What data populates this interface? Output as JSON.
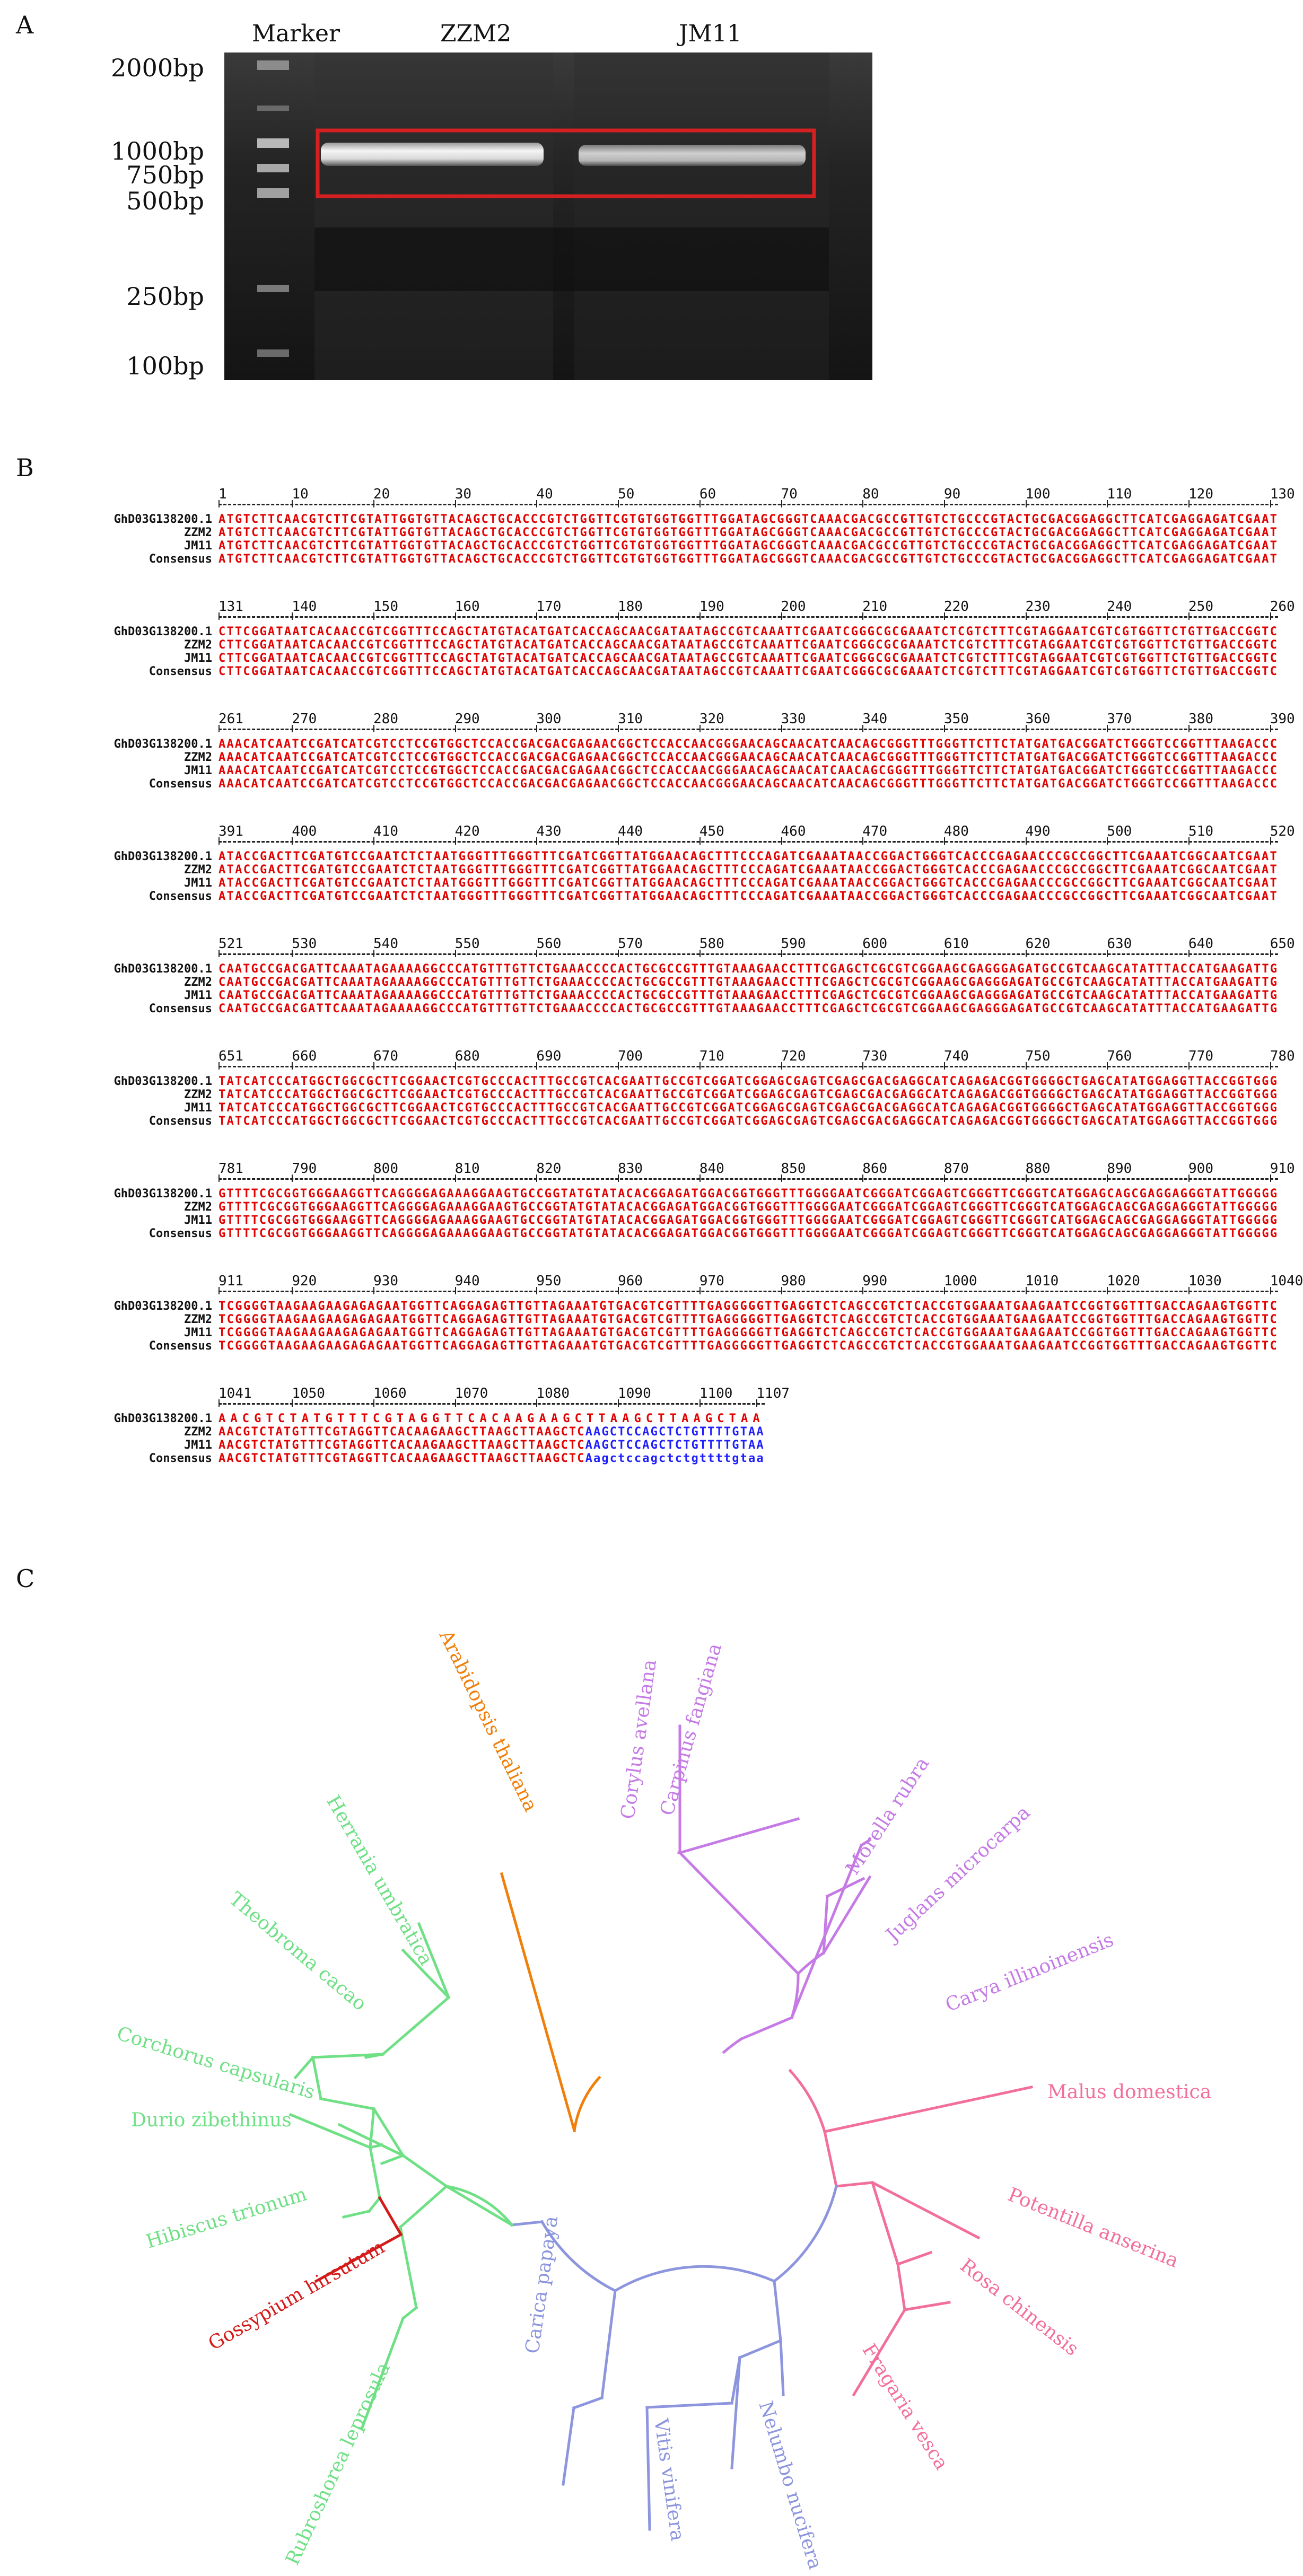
{
  "panels": {
    "a": "A",
    "b": "B",
    "c": "C"
  },
  "gel": {
    "lane_labels": [
      "Marker",
      "ZZM2",
      "JM11"
    ],
    "marker_sizes": [
      "2000bp",
      "1000bp",
      "750bp",
      "500bp",
      "250bp",
      "100bp"
    ],
    "highlight_color": "#d42020"
  },
  "alignment": {
    "names": [
      "GhD03G138200.1",
      "ZZM2",
      "JM11",
      "Consensus"
    ],
    "blocks": [
      {
        "nums": [
          "1",
          "10",
          "20",
          "30",
          "40",
          "50",
          "60",
          "70",
          "80",
          "90",
          "100",
          "110",
          "120",
          "130"
        ],
        "seqs": [
          "ATGTCTTCAACGTCTTCGTATTGGTGTTACAGCTGCACCCGTCTGGTTCGTGTGGTGGTTTGGATAGCGGGTCAAACGACGCCGTTGTCTGCCCGTACTGCGACGGAGGCTTCATCGAGGAGATCGAAT",
          "ATGTCTTCAACGTCTTCGTATTGGTGTTACAGCTGCACCCGTCTGGTTCGTGTGGTGGTTTGGATAGCGGGTCAAACGACGCCGTTGTCTGCCCGTACTGCGACGGAGGCTTCATCGAGGAGATCGAAT",
          "ATGTCTTCAACGTCTTCGTATTGGTGTTACAGCTGCACCCGTCTGGTTCGTGTGGTGGTTTGGATAGCGGGTCAAACGACGCCGTTGTCTGCCCGTACTGCGACGGAGGCTTCATCGAGGAGATCGAAT",
          "ATGTCTTCAACGTCTTCGTATTGGTGTTACAGCTGCACCCGTCTGGTTCGTGTGGTGGTTTGGATAGCGGGTCAAACGACGCCGTTGTCTGCCCGTACTGCGACGGAGGCTTCATCGAGGAGATCGAAT"
        ]
      },
      {
        "nums": [
          "131",
          "140",
          "150",
          "160",
          "170",
          "180",
          "190",
          "200",
          "210",
          "220",
          "230",
          "240",
          "250",
          "260"
        ],
        "seqs": [
          "CTTCGGATAATCACAACCGTCGGTTTCCAGCTATGTACATGATCACCAGCAACGATAATAGCCGTCAAATTCGAATCGGGCGCGAAATCTCGTCTTTCGTAGGAATCGTCGTGGTTCTGTTGACCGGTC",
          "CTTCGGATAATCACAACCGTCGGTTTCCAGCTATGTACATGATCACCAGCAACGATAATAGCCGTCAAATTCGAATCGGGCGCGAAATCTCGTCTTTCGTAGGAATCGTCGTGGTTCTGTTGACCGGTC",
          "CTTCGGATAATCACAACCGTCGGTTTCCAGCTATGTACATGATCACCAGCAACGATAATAGCCGTCAAATTCGAATCGGGCGCGAAATCTCGTCTTTCGTAGGAATCGTCGTGGTTCTGTTGACCGGTC",
          "CTTCGGATAATCACAACCGTCGGTTTCCAGCTATGTACATGATCACCAGCAACGATAATAGCCGTCAAATTCGAATCGGGCGCGAAATCTCGTCTTTCGTAGGAATCGTCGTGGTTCTGTTGACCGGTC"
        ]
      },
      {
        "nums": [
          "261",
          "270",
          "280",
          "290",
          "300",
          "310",
          "320",
          "330",
          "340",
          "350",
          "360",
          "370",
          "380",
          "390"
        ],
        "seqs": [
          "AAACATCAATCCGATCATCGTCCTCCGTGGCTCCACCGACGACGAGAACGGCTCCACCAACGGGAACAGCAACATCAACAGCGGGTTTGGGTTCTTCTATGATGACGGATCTGGGTCCGGTTTAAGACCC",
          "AAACATCAATCCGATCATCGTCCTCCGTGGCTCCACCGACGACGAGAACGGCTCCACCAACGGGAACAGCAACATCAACAGCGGGTTTGGGTTCTTCTATGATGACGGATCTGGGTCCGGTTTAAGACCC",
          "AAACATCAATCCGATCATCGTCCTCCGTGGCTCCACCGACGACGAGAACGGCTCCACCAACGGGAACAGCAACATCAACAGCGGGTTTGGGTTCTTCTATGATGACGGATCTGGGTCCGGTTTAAGACCC",
          "AAACATCAATCCGATCATCGTCCTCCGTGGCTCCACCGACGACGAGAACGGCTCCACCAACGGGAACAGCAACATCAACAGCGGGTTTGGGTTCTTCTATGATGACGGATCTGGGTCCGGTTTAAGACCC"
        ]
      },
      {
        "nums": [
          "391",
          "400",
          "410",
          "420",
          "430",
          "440",
          "450",
          "460",
          "470",
          "480",
          "490",
          "500",
          "510",
          "520"
        ],
        "seqs": [
          "ATACCGACTTCGATGTCCGAATCTCTAATGGGTTTGGGTTTCGATCGGTTATGGAACAGCTTTCCCAGATCGAAATAACCGGACTGGGTCACCCGAGAACCCGCCGGCTTCGAAATCGGCAATCGAAT",
          "ATACCGACTTCGATGTCCGAATCTCTAATGGGTTTGGGTTTCGATCGGTTATGGAACAGCTTTCCCAGATCGAAATAACCGGACTGGGTCACCCGAGAACCCGCCGGCTTCGAAATCGGCAATCGAAT",
          "ATACCGACTTCGATGTCCGAATCTCTAATGGGTTTGGGTTTCGATCGGTTATGGAACAGCTTTCCCAGATCGAAATAACCGGACTGGGTCACCCGAGAACCCGCCGGCTTCGAAATCGGCAATCGAAT",
          "ATACCGACTTCGATGTCCGAATCTCTAATGGGTTTGGGTTTCGATCGGTTATGGAACAGCTTTCCCAGATCGAAATAACCGGACTGGGTCACCCGAGAACCCGCCGGCTTCGAAATCGGCAATCGAAT"
        ]
      },
      {
        "nums": [
          "521",
          "530",
          "540",
          "550",
          "560",
          "570",
          "580",
          "590",
          "600",
          "610",
          "620",
          "630",
          "640",
          "650"
        ],
        "seqs": [
          "CAATGCCGACGATTCAAATAGAAAAGGCCCATGTTTGTTCTGAAACCCCACTGCGCCGTTTGTAAAGAACCTTTCGAGCTCGCGTCGGAAGCGAGGGAGATGCCGTCAAGCATATTTACCATGAAGATTG",
          "CAATGCCGACGATTCAAATAGAAAAGGCCCATGTTTGTTCTGAAACCCCACTGCGCCGTTTGTAAAGAACCTTTCGAGCTCGCGTCGGAAGCGAGGGAGATGCCGTCAAGCATATTTACCATGAAGATTG",
          "CAATGCCGACGATTCAAATAGAAAAGGCCCATGTTTGTTCTGAAACCCCACTGCGCCGTTTGTAAAGAACCTTTCGAGCTCGCGTCGGAAGCGAGGGAGATGCCGTCAAGCATATTTACCATGAAGATTG",
          "CAATGCCGACGATTCAAATAGAAAAGGCCCATGTTTGTTCTGAAACCCCACTGCGCCGTTTGTAAAGAACCTTTCGAGCTCGCGTCGGAAGCGAGGGAGATGCCGTCAAGCATATTTACCATGAAGATTG"
        ]
      },
      {
        "nums": [
          "651",
          "660",
          "670",
          "680",
          "690",
          "700",
          "710",
          "720",
          "730",
          "740",
          "750",
          "760",
          "770",
          "780"
        ],
        "seqs": [
          "TATCATCCCATGGCTGGCGCTTCGGAACTCGTGCCCACTTTGCCGTCACGAATTGCCGTCGGATCGGAGCGAGTCGAGCGACGAGGCATCAGAGACGGTGGGGCTGAGCATATGGAGGTTACCGGTGGG",
          "TATCATCCCATGGCTGGCGCTTCGGAACTCGTGCCCACTTTGCCGTCACGAATTGCCGTCGGATCGGAGCGAGTCGAGCGACGAGGCATCAGAGACGGTGGGGCTGAGCATATGGAGGTTACCGGTGGG",
          "TATCATCCCATGGCTGGCGCTTCGGAACTCGTGCCCACTTTGCCGTCACGAATTGCCGTCGGATCGGAGCGAGTCGAGCGACGAGGCATCAGAGACGGTGGGGCTGAGCATATGGAGGTTACCGGTGGG",
          "TATCATCCCATGGCTGGCGCTTCGGAACTCGTGCCCACTTTGCCGTCACGAATTGCCGTCGGATCGGAGCGAGTCGAGCGACGAGGCATCAGAGACGGTGGGGCTGAGCATATGGAGGTTACCGGTGGG"
        ]
      },
      {
        "nums": [
          "781",
          "790",
          "800",
          "810",
          "820",
          "830",
          "840",
          "850",
          "860",
          "870",
          "880",
          "890",
          "900",
          "910"
        ],
        "seqs": [
          "GTTTTCGCGGTGGGAAGGTTCAGGGGAGAAAGGAAGTGCCGGTATGTATACACGGAGATGGACGGTGGGTTTGGGGAATCGGGATCGGAGTCGGGTTCGGGTCATGGAGCAGCGAGGAGGGTATTGGGGG",
          "GTTTTCGCGGTGGGAAGGTTCAGGGGAGAAAGGAAGTGCCGGTATGTATACACGGAGATGGACGGTGGGTTTGGGGAATCGGGATCGGAGTCGGGTTCGGGTCATGGAGCAGCGAGGAGGGTATTGGGGG",
          "GTTTTCGCGGTGGGAAGGTTCAGGGGAGAAAGGAAGTGCCGGTATGTATACACGGAGATGGACGGTGGGTTTGGGGAATCGGGATCGGAGTCGGGTTCGGGTCATGGAGCAGCGAGGAGGGTATTGGGGG",
          "GTTTTCGCGGTGGGAAGGTTCAGGGGAGAAAGGAAGTGCCGGTATGTATACACGGAGATGGACGGTGGGTTTGGGGAATCGGGATCGGAGTCGGGTTCGGGTCATGGAGCAGCGAGGAGGGTATTGGGGG"
        ]
      },
      {
        "nums": [
          "911",
          "920",
          "930",
          "940",
          "950",
          "960",
          "970",
          "980",
          "990",
          "1000",
          "1010",
          "1020",
          "1030",
          "1040"
        ],
        "seqs": [
          "TCGGGGTAAGAAGAAGAGAGAATGGTTCAGGAGAGTTGTTAGAAATGTGACGTCGTTTTGAGGGGGTTGAGGTCTCAGCCGTCTCACCGTGGAAATGAAGAATCCGGTGGTTTGACCAGAAGTGGTTC",
          "TCGGGGTAAGAAGAAGAGAGAATGGTTCAGGAGAGTTGTTAGAAATGTGACGTCGTTTTGAGGGGGTTGAGGTCTCAGCCGTCTCACCGTGGAAATGAAGAATCCGGTGGTTTGACCAGAAGTGGTTC",
          "TCGGGGTAAGAAGAAGAGAGAATGGTTCAGGAGAGTTGTTAGAAATGTGACGTCGTTTTGAGGGGGTTGAGGTCTCAGCCGTCTCACCGTGGAAATGAAGAATCCGGTGGTTTGACCAGAAGTGGTTC",
          "TCGGGGTAAGAAGAAGAGAGAATGGTTCAGGAGAGTTGTTAGAAATGTGACGTCGTTTTGAGGGGGTTGAGGTCTCAGCCGTCTCACCGTGGAAATGAAGAATCCGGTGGTTTGACCAGAAGTGGTTC"
        ]
      },
      {
        "nums": [
          "1041",
          "1050",
          "1060",
          "1070",
          "1080",
          "1090",
          "1100",
          "1107"
        ],
        "seqs_red": [
          "AACGTCTATGTTTCGTAGGTTCACAAGAAGCTTAAGCTTAAGCTAA",
          "AACGTCTATGTTTCGTAGGTTCACAAGAAGCTTAAGCTTAAGCTC",
          "AACGTCTATGTTTCGTAGGTTCACAAGAAGCTTAAGCTTAAGCTC",
          "AACGTCTATGTTTCGTAGGTTCACAAGAAGCTTAAGCTTAAGCTC"
        ],
        "seqs_blue": [
          "",
          "AAGCTCCAGCTCTGTTTTGTAA",
          "AAGCTCCAGCTCTGTTTTGTAA",
          "Aagctccagctctgttttgtaa"
        ]
      }
    ]
  },
  "tree": {
    "taxa": {
      "arabidopsis": "Arabidopsis thaliana",
      "corylus": "Corylus avellana",
      "carpinus": "Carpinus fangiana",
      "morella": "Morella rubra",
      "juglans": "Juglans microcarpa",
      "carya": "Carya illinoinensis",
      "malus": "Malus domestica",
      "potentilla": "Potentilla anserina",
      "rosa": "Rosa chinensis",
      "fragaria": "Fragaria vesca",
      "nelumbo": "Nelumbo nucifera",
      "vitis": "Vitis vinifera",
      "carica": "Carica papaya",
      "rubroshorea": "Rubroshorea leprosula",
      "gossypium": "Gossypium hirsutum",
      "hibiscus": "Hibiscus trionum",
      "durio": "Durio zibethinus",
      "corchorus": "Corchorus capsularis",
      "theobroma": "Theobroma cacao",
      "herrania": "Herrania umbratica"
    },
    "clade_colors": {
      "orange": "#f07f0a",
      "purple": "#c57ae6",
      "pink": "#f26f9b",
      "blue": "#8c95de",
      "green": "#6fe085",
      "red": "#d41a1a"
    }
  }
}
